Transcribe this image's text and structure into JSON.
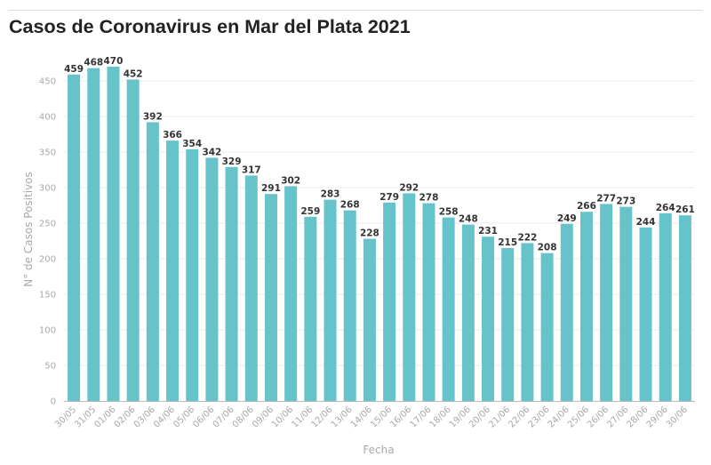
{
  "colors": {
    "bar": "#66c3ca",
    "grid": "#ebebeb",
    "axis": "#bbbbbb",
    "text": "#333333",
    "muted": "#a9a9a9"
  },
  "chart_data": {
    "type": "bar",
    "title": "Casos de Coronavirus en Mar del Plata 2021",
    "xlabel": "Fecha",
    "ylabel": "N° de Casos Positivos",
    "ylim": [
      0,
      470
    ],
    "yticks": [
      0,
      50,
      100,
      150,
      200,
      250,
      300,
      350,
      400,
      450
    ],
    "grid": true,
    "categories": [
      "30/05",
      "31/05",
      "01/06",
      "02/06",
      "03/06",
      "04/06",
      "05/06",
      "06/06",
      "07/06",
      "08/06",
      "09/06",
      "10/06",
      "11/06",
      "12/06",
      "13/06",
      "14/06",
      "15/06",
      "16/06",
      "17/06",
      "18/06",
      "19/06",
      "20/06",
      "21/06",
      "22/06",
      "23/06",
      "24/06",
      "25/06",
      "26/06",
      "27/06",
      "28/06",
      "29/06",
      "30/06"
    ],
    "values": [
      459,
      468,
      470,
      452,
      392,
      366,
      354,
      342,
      329,
      317,
      291,
      302,
      259,
      283,
      268,
      228,
      279,
      292,
      278,
      258,
      248,
      231,
      215,
      222,
      208,
      249,
      266,
      277,
      273,
      244,
      264,
      261
    ]
  }
}
